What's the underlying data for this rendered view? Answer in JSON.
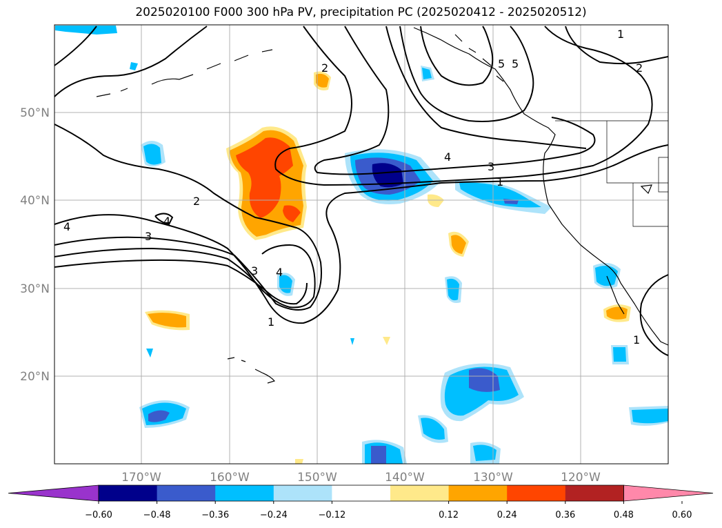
{
  "title": "2025020100 F000 300 hPa PV, precipitation PC (2025020412 - 2025020512)",
  "lat_labels": [
    "50°N",
    "40°N",
    "30°N",
    "20°N"
  ],
  "lon_labels": [
    "170°W",
    "160°W",
    "150°W",
    "140°W",
    "130°W",
    "120°W"
  ],
  "contour_labels": [
    "1",
    "2",
    "3",
    "4",
    "5"
  ],
  "colorbar": {
    "tick_labels": [
      "−0.60",
      "−0.48",
      "−0.36",
      "−0.24",
      "−0.12",
      "0.12",
      "0.24",
      "0.36",
      "0.48",
      "0.60"
    ],
    "colors": [
      "#9933cc",
      "#00008b",
      "#3a5bcc",
      "#00bfff",
      "#ade3fa",
      "#ffffff",
      "#ffe98a",
      "#ffa500",
      "#ff4500",
      "#b22222",
      "#ff88aa"
    ]
  },
  "legend_colors": {
    "land_outline": "#000000",
    "contour": "#000000",
    "grid": "#b0b0b0"
  }
}
